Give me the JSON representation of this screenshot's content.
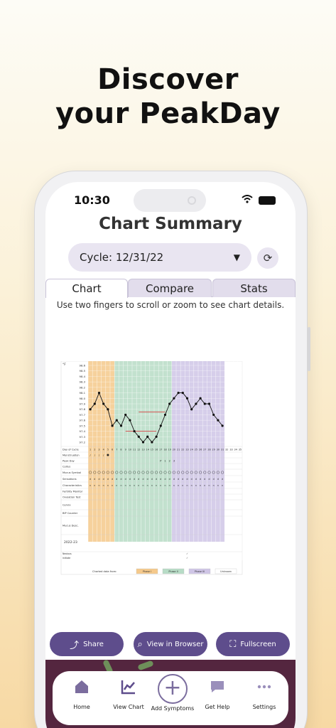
{
  "promo": {
    "line1": "Discover",
    "line2": "your PeakDay"
  },
  "status": {
    "time": "10:30"
  },
  "screen": {
    "title": "Chart Summary",
    "cycle_label": "Cycle: 12/31/22",
    "tabs": [
      "Chart",
      "Compare",
      "Stats"
    ],
    "active_tab": "Chart",
    "hint": "Use two fingers to scroll or zoom to see chart details."
  },
  "actions": {
    "share": "Share",
    "browser": "View in Browser",
    "fullscreen": "Fullscreen"
  },
  "tabbar": {
    "items": [
      "Home",
      "View Chart",
      "Add Symptoms",
      "Get Help",
      "Settings"
    ]
  },
  "colors": {
    "accent": "#5e4d8c",
    "phase1": "#f5c98b",
    "phase2": "#b7dcc6",
    "phase3": "#cfc5e6",
    "coverline": "#d64545",
    "dark_band": "#54263f"
  },
  "chart_data": {
    "type": "line",
    "unit": "°F",
    "y_ticks": [
      "98.6",
      "98.5",
      "98.4",
      "98.3",
      "98.2",
      "98.1",
      "98.0",
      "97.9",
      "97.8",
      "97.7",
      "97.6",
      "97.5",
      "97.4",
      "97.3",
      "97.2"
    ],
    "ylim": [
      97.2,
      98.6
    ],
    "x": [
      1,
      2,
      3,
      4,
      5,
      6,
      7,
      8,
      9,
      10,
      11,
      12,
      13,
      14,
      15,
      16,
      17,
      18,
      19,
      20,
      21,
      22,
      23,
      24,
      25,
      26,
      27,
      28,
      29,
      30,
      31
    ],
    "values": [
      97.8,
      97.9,
      98.1,
      97.9,
      97.8,
      97.5,
      97.6,
      97.5,
      97.7,
      97.6,
      97.4,
      97.3,
      97.2,
      97.3,
      97.2,
      97.3,
      97.5,
      97.7,
      97.9,
      98.0,
      98.1,
      98.1,
      98.0,
      97.8,
      97.9,
      98.0,
      97.9,
      97.9,
      97.7,
      97.6,
      97.5
    ],
    "coverlines": [
      {
        "from_day": 12,
        "to_day": 18,
        "value": 97.75
      },
      {
        "from_day": 9,
        "to_day": 16,
        "value": 97.4
      }
    ],
    "row_labels": [
      "Day of Cycle",
      "Menstruation",
      "Peak Day",
      "Coitus",
      "Mucus Symbol",
      "Sensations",
      "Characteristics",
      "Fertility Monitor",
      "Ovulation Test",
      "Cervix",
      "BIP Counter",
      "Mucus Desc."
    ],
    "peak_day_marks": {
      "P": 17,
      "1": 18,
      "2": 19,
      "3": 20
    },
    "extra_days": [
      32,
      33,
      34,
      35
    ],
    "year_label": "2022-23",
    "bottom_rows": [
      "Nexious",
      "Initiate"
    ],
    "legend_title": "Charted data from:",
    "legend": [
      "Phase I",
      "Phase II",
      "Phase III",
      "Unknown"
    ],
    "phase_ranges": [
      [
        1,
        6
      ],
      [
        7,
        19
      ],
      [
        20,
        31
      ]
    ]
  }
}
